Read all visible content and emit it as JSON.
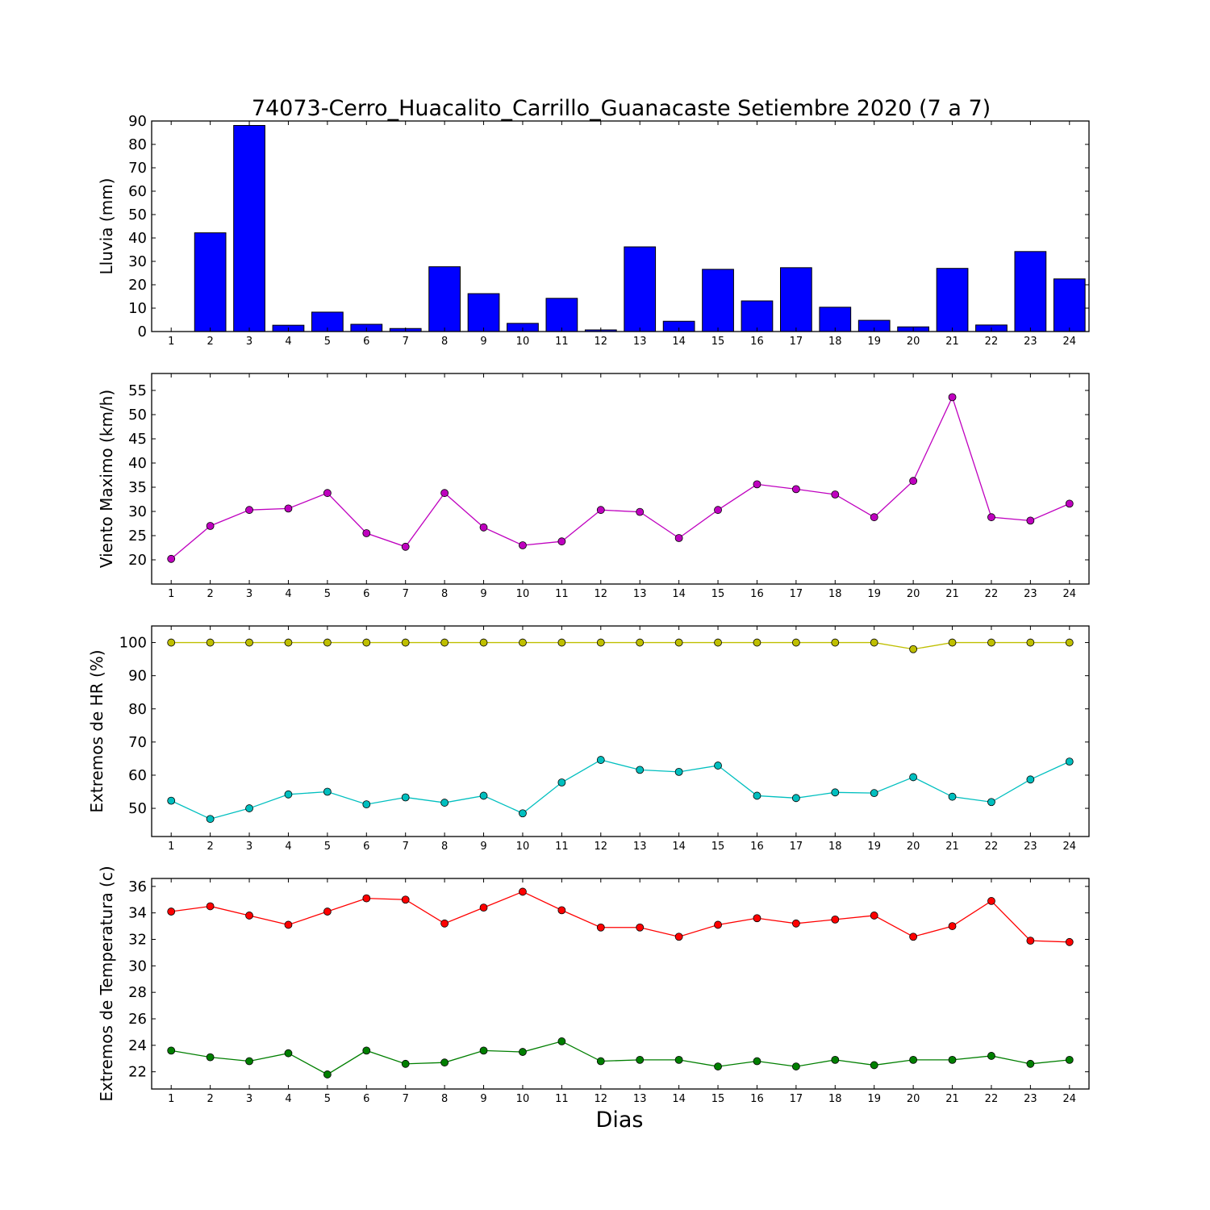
{
  "figure": {
    "title": "74073-Cerro_Huacalito_Carrillo_Guanacaste Setiembre 2020  (7 a 7)",
    "xlabel": "Dias"
  },
  "chart_data": [
    {
      "type": "bar",
      "ylabel": "Lluvia (mm)",
      "categories": [
        "1",
        "2",
        "3",
        "4",
        "5",
        "6",
        "7",
        "8",
        "9",
        "10",
        "11",
        "12",
        "13",
        "14",
        "15",
        "16",
        "17",
        "18",
        "19",
        "20",
        "21",
        "22",
        "23",
        "24"
      ],
      "ylim": [
        0,
        90
      ],
      "yticks": [
        0,
        10,
        20,
        30,
        40,
        50,
        60,
        70,
        80,
        90
      ],
      "grid": false,
      "series": [
        {
          "color": "#0000ff",
          "values": [
            0,
            42.2,
            88.1,
            2.7,
            8.3,
            3.1,
            1.3,
            27.7,
            16.2,
            3.5,
            14.2,
            0.7,
            36.2,
            4.4,
            26.6,
            13.1,
            27.3,
            10.4,
            4.8,
            2.0,
            27.0,
            2.8,
            34.2,
            22.5
          ]
        }
      ]
    },
    {
      "type": "line",
      "ylabel": "Viento Maximo (km/h)",
      "x": [
        1,
        2,
        3,
        4,
        5,
        6,
        7,
        8,
        9,
        10,
        11,
        12,
        13,
        14,
        15,
        16,
        17,
        18,
        19,
        20,
        21,
        22,
        23,
        24
      ],
      "ylim": [
        15,
        58.5
      ],
      "yticks": [
        20,
        25,
        30,
        35,
        40,
        45,
        50,
        55
      ],
      "grid": false,
      "series": [
        {
          "color": "#bf00bf",
          "values": [
            20.2,
            27.0,
            30.3,
            30.6,
            33.8,
            25.5,
            22.7,
            33.8,
            26.7,
            23.0,
            23.8,
            30.3,
            29.9,
            24.5,
            30.3,
            35.6,
            34.6,
            33.5,
            28.8,
            36.3,
            53.6,
            28.8,
            28.1,
            31.6
          ]
        }
      ]
    },
    {
      "type": "line",
      "ylabel": "Extremos de HR (%)",
      "x": [
        1,
        2,
        3,
        4,
        5,
        6,
        7,
        8,
        9,
        10,
        11,
        12,
        13,
        14,
        15,
        16,
        17,
        18,
        19,
        20,
        21,
        22,
        23,
        24
      ],
      "ylim": [
        41.5,
        105
      ],
      "yticks": [
        50,
        60,
        70,
        80,
        90,
        100
      ],
      "grid": false,
      "series": [
        {
          "color": "#bfbf00",
          "values": [
            100,
            100,
            100,
            100,
            100,
            100,
            100,
            100,
            100,
            100,
            100,
            100,
            100,
            100,
            100,
            100,
            100,
            100,
            100,
            98,
            100,
            100,
            100,
            100
          ]
        },
        {
          "color": "#00bfbf",
          "values": [
            52.3,
            46.8,
            50.0,
            54.2,
            55.0,
            51.2,
            53.3,
            51.7,
            53.8,
            48.5,
            57.8,
            64.6,
            61.6,
            61.0,
            62.9,
            53.8,
            53.1,
            54.8,
            54.6,
            59.4,
            53.5,
            51.9,
            58.7,
            64.1
          ]
        }
      ]
    },
    {
      "type": "line",
      "ylabel": "Extremos de Temperatura (c)",
      "x": [
        1,
        2,
        3,
        4,
        5,
        6,
        7,
        8,
        9,
        10,
        11,
        12,
        13,
        14,
        15,
        16,
        17,
        18,
        19,
        20,
        21,
        22,
        23,
        24
      ],
      "ylim": [
        20.7,
        36.6
      ],
      "yticks": [
        22,
        24,
        26,
        28,
        30,
        32,
        34,
        36
      ],
      "grid": false,
      "series": [
        {
          "color": "#ff0000",
          "values": [
            34.1,
            34.5,
            33.8,
            33.1,
            34.1,
            35.1,
            35.0,
            33.2,
            34.4,
            35.6,
            34.2,
            32.9,
            32.9,
            32.2,
            33.1,
            33.6,
            33.2,
            33.5,
            33.8,
            32.2,
            33.0,
            34.9,
            31.9,
            31.8
          ]
        },
        {
          "color": "#007f00",
          "values": [
            23.6,
            23.1,
            22.8,
            23.4,
            21.8,
            23.6,
            22.6,
            22.7,
            23.6,
            23.5,
            24.3,
            22.8,
            22.9,
            22.9,
            22.4,
            22.8,
            22.4,
            22.9,
            22.5,
            22.9,
            22.9,
            23.2,
            22.6,
            22.9
          ]
        }
      ]
    }
  ]
}
